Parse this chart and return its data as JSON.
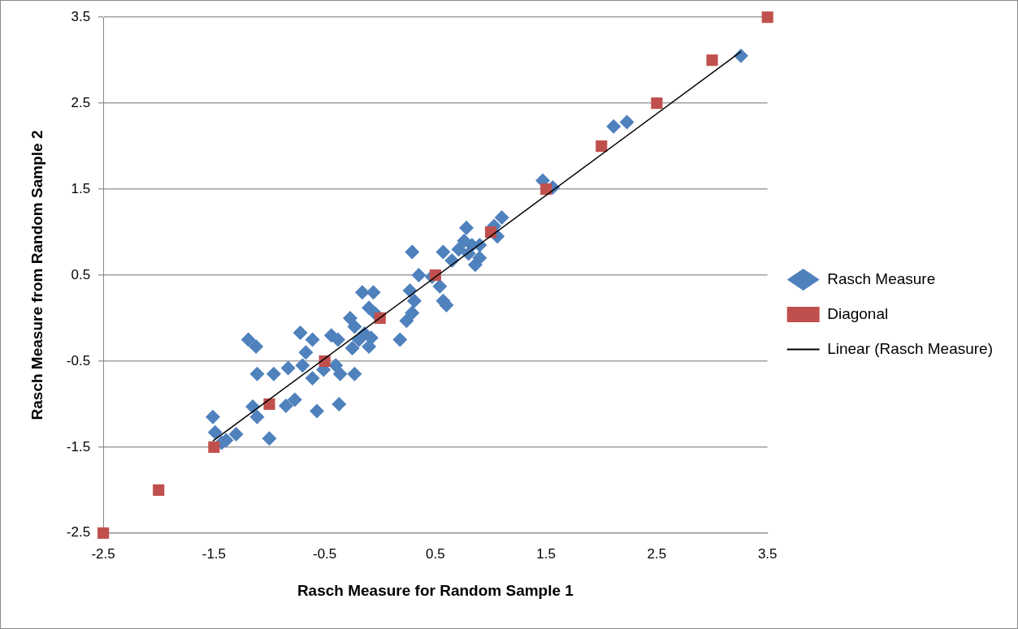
{
  "chart_data": {
    "type": "scatter",
    "xlabel": "Rasch Measure for Random Sample 1",
    "ylabel": "Rasch Measure from Random Sample 2",
    "xlim": [
      -2.5,
      3.5
    ],
    "xticks": [
      -2.5,
      -1.5,
      -0.5,
      0.5,
      1.5,
      2.5,
      3.5
    ],
    "ylim": [
      -2.5,
      3.5
    ],
    "yticks": [
      -2.5,
      -1.5,
      -0.5,
      0.5,
      1.5,
      2.5,
      3.5
    ],
    "grid": "y",
    "legend": "right",
    "series": [
      {
        "name": "Rasch Measure",
        "color": "#4f81bd",
        "marker": "diamond",
        "x": [
          -1.51,
          -1.49,
          -1.39,
          -1.3,
          -1.43,
          -1.15,
          -1.11,
          -1.11,
          -1.19,
          -1.12,
          -1.0,
          -0.96,
          -0.85,
          -0.77,
          -0.83,
          -0.72,
          -0.61,
          -0.67,
          -0.7,
          -0.57,
          -0.61,
          -0.51,
          -0.44,
          -0.38,
          -0.4,
          -0.37,
          -0.36,
          -0.27,
          -0.23,
          -0.25,
          -0.23,
          -0.16,
          -0.06,
          -0.1,
          -0.14,
          -0.1,
          -0.08,
          -0.19,
          -0.04,
          0.18,
          0.24,
          0.27,
          0.29,
          0.31,
          0.35,
          0.29,
          0.47,
          0.54,
          0.57,
          0.6,
          0.57,
          0.65,
          0.71,
          0.78,
          0.76,
          0.83,
          0.8,
          0.86,
          0.9,
          0.9,
          1.06,
          1.1,
          1.03,
          1.47,
          1.56,
          2.11,
          2.23,
          3.26
        ],
        "values": [
          -1.15,
          -1.33,
          -1.42,
          -1.35,
          -1.45,
          -1.03,
          -1.15,
          -0.65,
          -0.25,
          -0.33,
          -1.4,
          -0.65,
          -1.02,
          -0.95,
          -0.58,
          -0.17,
          -0.25,
          -0.4,
          -0.55,
          -1.08,
          -0.7,
          -0.6,
          -0.2,
          -0.25,
          -0.55,
          -1.0,
          -0.65,
          0.0,
          -0.1,
          -0.35,
          -0.65,
          0.3,
          0.3,
          0.12,
          -0.18,
          -0.33,
          -0.23,
          -0.25,
          0.05,
          -0.25,
          -0.03,
          0.32,
          0.06,
          0.2,
          0.5,
          0.77,
          0.48,
          0.37,
          0.2,
          0.15,
          0.77,
          0.67,
          0.8,
          1.05,
          0.9,
          0.85,
          0.75,
          0.62,
          0.7,
          0.85,
          0.95,
          1.17,
          1.07,
          1.6,
          1.52,
          2.23,
          2.28,
          3.05
        ]
      },
      {
        "name": "Diagonal",
        "color": "#c0504d",
        "marker": "square",
        "x": [
          -2.5,
          -2,
          -1.5,
          -1,
          -0.5,
          0,
          0.5,
          1,
          1.5,
          2,
          2.5,
          3,
          3.5
        ],
        "values": [
          -2.5,
          -2,
          -1.5,
          -1,
          -0.5,
          0,
          0.5,
          1,
          1.5,
          2,
          2.5,
          3,
          3.5
        ]
      },
      {
        "name": "Linear (Rasch Measure)",
        "type": "line",
        "color": "#000000",
        "marker": "none",
        "line_style": "solid",
        "x": [
          -1.51,
          3.26
        ],
        "values": [
          -1.43,
          3.1
        ]
      }
    ]
  }
}
